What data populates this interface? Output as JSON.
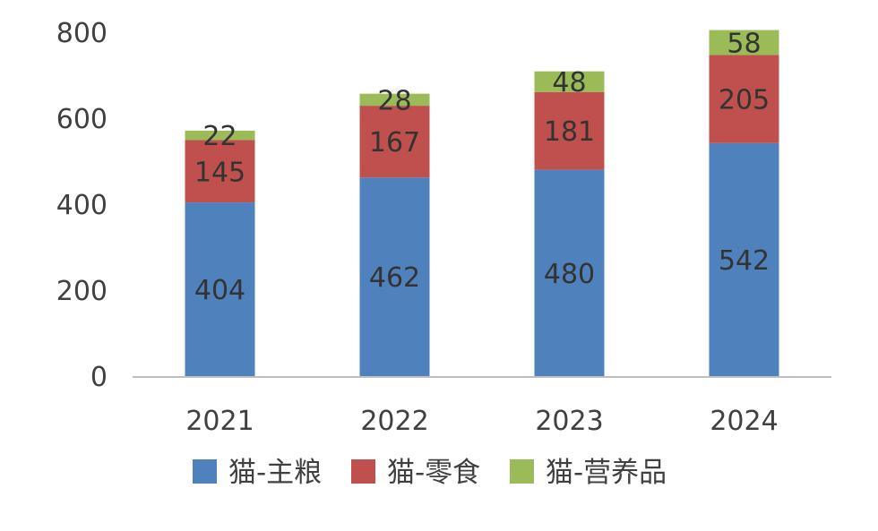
{
  "chart_data": {
    "type": "bar",
    "stacked": true,
    "categories": [
      "2021",
      "2022",
      "2023",
      "2024"
    ],
    "series": [
      {
        "name": "猫-主粮",
        "values": [
          404,
          462,
          480,
          542
        ],
        "color": "#4F81BD"
      },
      {
        "name": "猫-零食",
        "values": [
          145,
          167,
          181,
          205
        ],
        "color": "#C0504D"
      },
      {
        "name": "猫-营养品",
        "values": [
          22,
          28,
          48,
          58
        ],
        "color": "#9BBB59"
      }
    ],
    "title": "",
    "xlabel": "",
    "ylabel": "",
    "ylim": [
      0,
      800
    ],
    "yticks": [
      0,
      200,
      400,
      600,
      800
    ],
    "grid": false,
    "legend_position": "bottom",
    "data_labels": true
  }
}
